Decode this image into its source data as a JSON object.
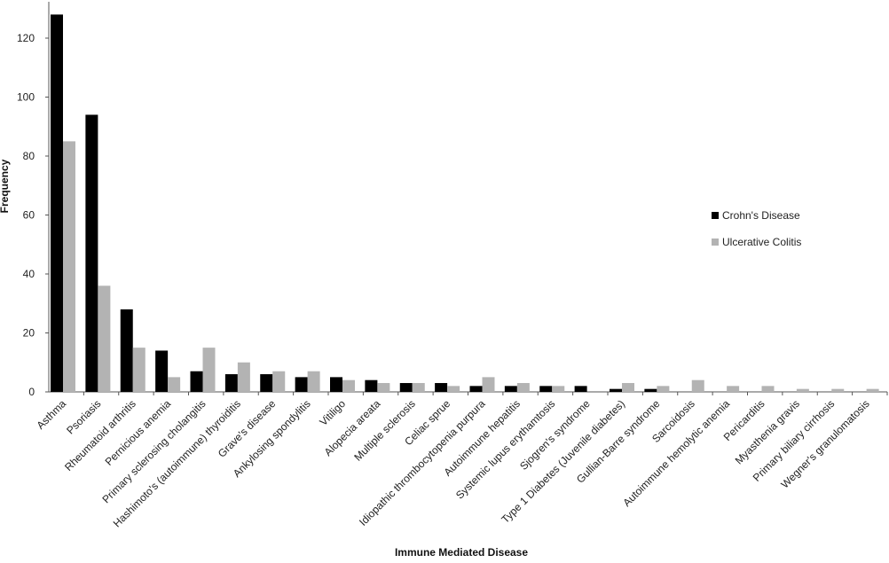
{
  "chart_data": {
    "type": "bar",
    "title": "",
    "xlabel": "Immune Mediated Disease",
    "ylabel": "Frequency",
    "ylim": [
      0,
      130
    ],
    "yticks": [
      0,
      20,
      40,
      60,
      80,
      100,
      120
    ],
    "grid": false,
    "legend_position": "right",
    "categories": [
      "Asthma",
      "Psoriasis",
      "Rheumatoid arthritis",
      "Pernicious anemia",
      "Primary sclerosing cholangitis",
      "Hashimoto's (autoimmune) thyroiditis",
      "Grave's disease",
      "Ankylosing spondylitis",
      "Vitiligo",
      "Alopecia areata",
      "Multiple sclerosis",
      "Celiac sprue",
      "Idiopathic thrombocytopenia purpura",
      "Autoimmune hepatitis",
      "Systemic lupus erythamtosis",
      "Sjogren's syndrome",
      "Type 1 Diabetes (Juvenile diabetes)",
      "Gullian-Barre syndrome",
      "Sarcoidosis",
      "Autoimmune hemolytic anemia",
      "Pericarditis",
      "Myasthenia gravis",
      "Primary biliary cirrhosis",
      "Wegner's granulomatosis"
    ],
    "series": [
      {
        "name": "Crohn's Disease",
        "color": "#000000",
        "values": [
          128,
          94,
          28,
          14,
          7,
          6,
          6,
          5,
          5,
          4,
          3,
          3,
          2,
          2,
          2,
          2,
          1,
          1,
          0,
          0,
          0,
          0,
          0,
          0
        ]
      },
      {
        "name": "Ulcerative Colitis",
        "color": "#b3b3b3",
        "values": [
          85,
          36,
          15,
          5,
          15,
          10,
          7,
          7,
          4,
          3,
          3,
          2,
          5,
          3,
          2,
          0,
          3,
          2,
          4,
          2,
          2,
          1,
          1,
          1
        ]
      }
    ]
  }
}
